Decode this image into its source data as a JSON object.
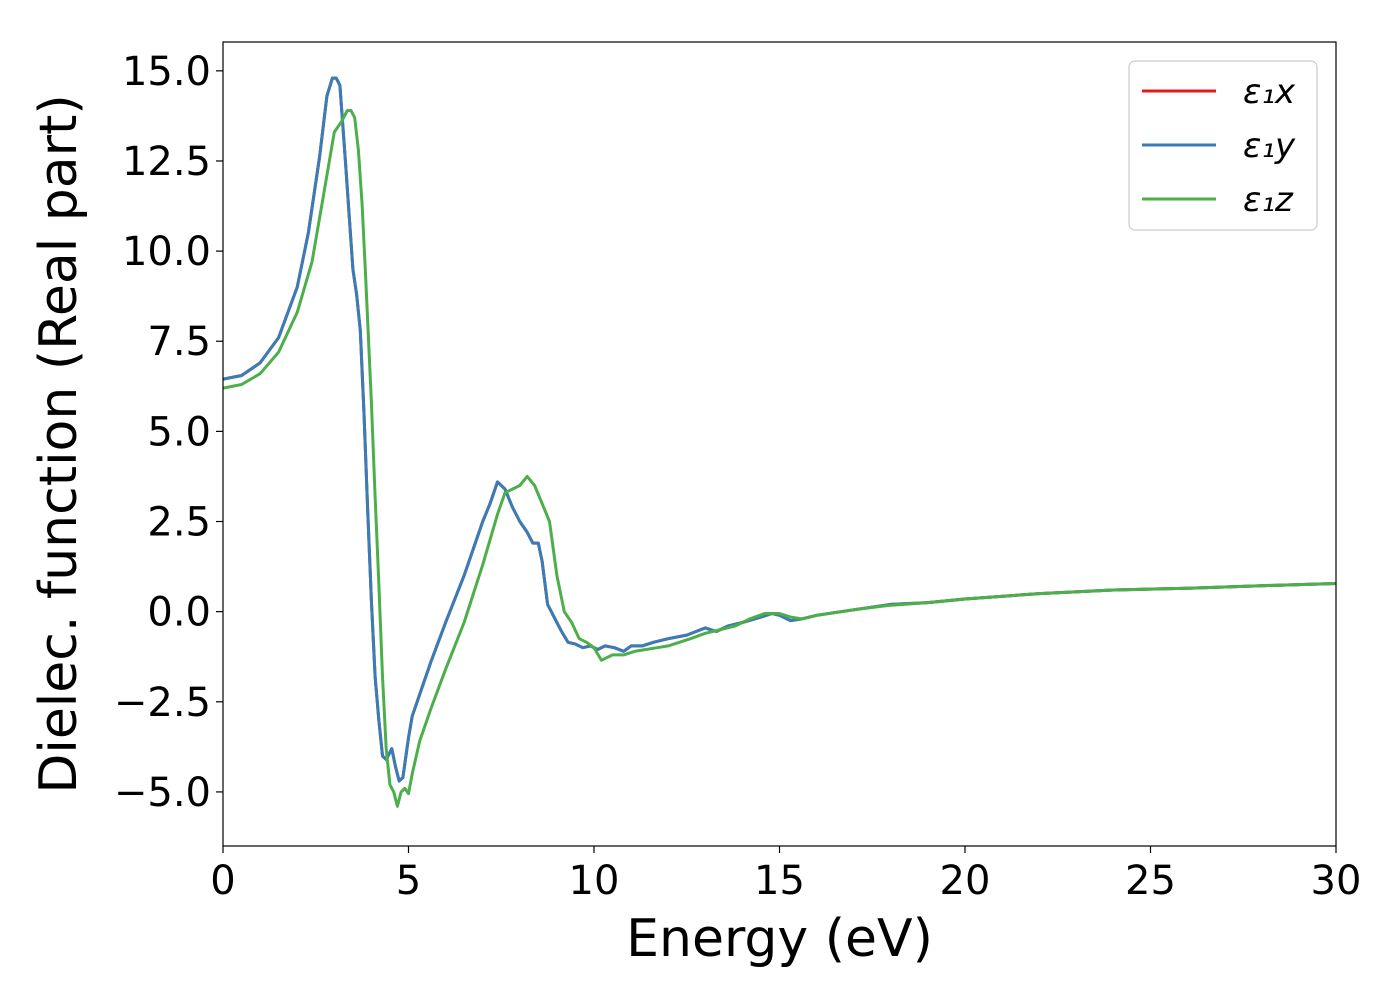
{
  "chart_data": {
    "type": "line",
    "title": "",
    "xlabel": "Energy (eV)",
    "ylabel": "Dielec. function (Real part)",
    "xlim": [
      0,
      30
    ],
    "ylim": [
      -6.5,
      15.8
    ],
    "xticks": [
      0,
      5,
      10,
      15,
      20,
      25,
      30
    ],
    "xtick_labels": [
      "0",
      "5",
      "10",
      "15",
      "20",
      "25",
      "30"
    ],
    "yticks": [
      -5,
      -2.5,
      0,
      2.5,
      5,
      7.5,
      10,
      12.5,
      15
    ],
    "ytick_labels": [
      "−5.0",
      "−2.5",
      "0.0",
      "2.5",
      "5.0",
      "7.5",
      "10.0",
      "12.5",
      "15.0"
    ],
    "grid": false,
    "legend_position": "top-right",
    "series": [
      {
        "name": "ε₁x",
        "color": "#e41a1c",
        "x": [
          0,
          0.5,
          1.0,
          1.5,
          2.0,
          2.3,
          2.6,
          2.8,
          2.95,
          3.05,
          3.15,
          3.3,
          3.5,
          3.6,
          3.7,
          3.8,
          3.9,
          4.0,
          4.1,
          4.2,
          4.3,
          4.4,
          4.55,
          4.65,
          4.75,
          4.85,
          5.0,
          5.1,
          5.3,
          5.6,
          6.0,
          6.5,
          7.0,
          7.2,
          7.4,
          7.6,
          7.8,
          8.0,
          8.2,
          8.35,
          8.5,
          8.6,
          8.75,
          8.9,
          9.1,
          9.3,
          9.5,
          9.7,
          9.9,
          10.1,
          10.3,
          10.55,
          10.8,
          11.0,
          11.3,
          11.6,
          12.0,
          12.5,
          13.0,
          13.3,
          13.6,
          14.0,
          14.5,
          14.8,
          15.0,
          15.3,
          15.6,
          16.0,
          17.0,
          18.0,
          19.0,
          20.0,
          22.0,
          24.0,
          26.0,
          28.0,
          30.0
        ],
        "values": [
          6.45,
          6.55,
          6.9,
          7.6,
          9.0,
          10.5,
          12.6,
          14.3,
          14.8,
          14.8,
          14.6,
          12.5,
          9.5,
          8.8,
          7.8,
          5.5,
          2.8,
          0.3,
          -1.8,
          -3.0,
          -4.0,
          -4.1,
          -3.8,
          -4.3,
          -4.7,
          -4.6,
          -3.5,
          -2.9,
          -2.3,
          -1.4,
          -0.3,
          1.0,
          2.5,
          3.0,
          3.6,
          3.4,
          2.9,
          2.5,
          2.2,
          1.9,
          1.9,
          1.4,
          0.2,
          -0.1,
          -0.5,
          -0.85,
          -0.9,
          -1.0,
          -0.95,
          -1.05,
          -0.95,
          -1.0,
          -1.1,
          -0.95,
          -0.95,
          -0.85,
          -0.75,
          -0.65,
          -0.45,
          -0.55,
          -0.4,
          -0.3,
          -0.15,
          -0.05,
          -0.1,
          -0.25,
          -0.2,
          -0.1,
          0.05,
          0.2,
          0.25,
          0.35,
          0.5,
          0.6,
          0.65,
          0.72,
          0.78
        ]
      },
      {
        "name": "ε₁y",
        "color": "#377eb8",
        "x": [
          0,
          0.5,
          1.0,
          1.5,
          2.0,
          2.3,
          2.6,
          2.8,
          2.95,
          3.05,
          3.15,
          3.3,
          3.5,
          3.6,
          3.7,
          3.8,
          3.9,
          4.0,
          4.1,
          4.2,
          4.3,
          4.4,
          4.55,
          4.65,
          4.75,
          4.85,
          5.0,
          5.1,
          5.3,
          5.6,
          6.0,
          6.5,
          7.0,
          7.2,
          7.4,
          7.6,
          7.8,
          8.0,
          8.2,
          8.35,
          8.5,
          8.6,
          8.75,
          8.9,
          9.1,
          9.3,
          9.5,
          9.7,
          9.9,
          10.1,
          10.3,
          10.55,
          10.8,
          11.0,
          11.3,
          11.6,
          12.0,
          12.5,
          13.0,
          13.3,
          13.6,
          14.0,
          14.5,
          14.8,
          15.0,
          15.3,
          15.6,
          16.0,
          17.0,
          18.0,
          19.0,
          20.0,
          22.0,
          24.0,
          26.0,
          28.0,
          30.0
        ],
        "values": [
          6.45,
          6.55,
          6.9,
          7.6,
          9.0,
          10.5,
          12.6,
          14.3,
          14.8,
          14.8,
          14.6,
          12.5,
          9.5,
          8.8,
          7.8,
          5.5,
          2.8,
          0.3,
          -1.8,
          -3.0,
          -4.0,
          -4.1,
          -3.8,
          -4.3,
          -4.7,
          -4.6,
          -3.5,
          -2.9,
          -2.3,
          -1.4,
          -0.3,
          1.0,
          2.5,
          3.0,
          3.6,
          3.4,
          2.9,
          2.5,
          2.2,
          1.9,
          1.9,
          1.4,
          0.2,
          -0.1,
          -0.5,
          -0.85,
          -0.9,
          -1.0,
          -0.95,
          -1.05,
          -0.95,
          -1.0,
          -1.1,
          -0.95,
          -0.95,
          -0.85,
          -0.75,
          -0.65,
          -0.45,
          -0.55,
          -0.4,
          -0.3,
          -0.15,
          -0.05,
          -0.1,
          -0.25,
          -0.2,
          -0.1,
          0.05,
          0.2,
          0.25,
          0.35,
          0.5,
          0.6,
          0.65,
          0.72,
          0.78
        ]
      },
      {
        "name": "ε₁z",
        "color": "#4daf4a",
        "x": [
          0,
          0.5,
          1.0,
          1.5,
          2.0,
          2.4,
          2.7,
          3.0,
          3.2,
          3.35,
          3.45,
          3.55,
          3.65,
          3.75,
          3.85,
          4.0,
          4.1,
          4.2,
          4.3,
          4.4,
          4.5,
          4.6,
          4.7,
          4.8,
          4.9,
          5.0,
          5.1,
          5.3,
          5.6,
          6.0,
          6.5,
          7.0,
          7.4,
          7.6,
          7.8,
          8.0,
          8.2,
          8.4,
          8.6,
          8.8,
          9.0,
          9.2,
          9.4,
          9.6,
          9.8,
          10.0,
          10.2,
          10.5,
          10.8,
          11.1,
          11.4,
          11.7,
          12.0,
          12.3,
          12.6,
          13.0,
          13.4,
          13.8,
          14.2,
          14.6,
          15.0,
          15.3,
          15.6,
          16.0,
          17.0,
          18.0,
          19.0,
          20.0,
          22.0,
          24.0,
          26.0,
          28.0,
          30.0
        ],
        "values": [
          6.2,
          6.3,
          6.6,
          7.2,
          8.3,
          9.7,
          11.5,
          13.3,
          13.6,
          13.9,
          13.9,
          13.7,
          12.8,
          11.3,
          9.2,
          5.8,
          3.2,
          0.8,
          -1.8,
          -3.8,
          -4.8,
          -5.0,
          -5.4,
          -5.0,
          -4.9,
          -5.05,
          -4.5,
          -3.6,
          -2.7,
          -1.6,
          -0.3,
          1.3,
          2.7,
          3.3,
          3.4,
          3.5,
          3.75,
          3.5,
          3.0,
          2.5,
          1.0,
          0.0,
          -0.3,
          -0.75,
          -0.85,
          -1.0,
          -1.35,
          -1.2,
          -1.2,
          -1.1,
          -1.05,
          -1.0,
          -0.95,
          -0.85,
          -0.75,
          -0.6,
          -0.5,
          -0.4,
          -0.2,
          -0.05,
          -0.05,
          -0.15,
          -0.2,
          -0.1,
          0.05,
          0.18,
          0.25,
          0.35,
          0.5,
          0.6,
          0.65,
          0.72,
          0.78
        ]
      }
    ]
  }
}
